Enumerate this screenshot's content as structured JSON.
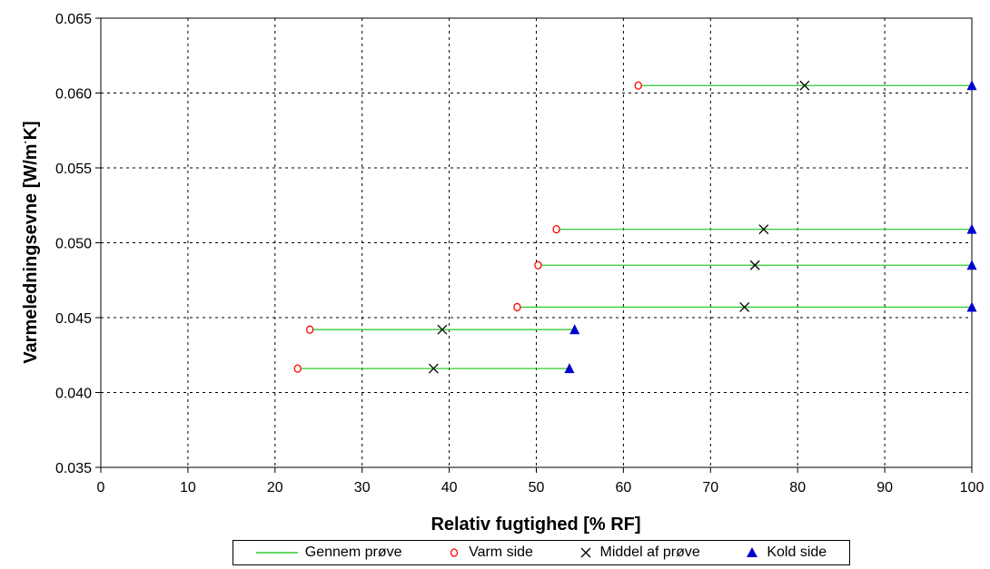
{
  "chart_data": {
    "type": "scatter",
    "title": "",
    "xlabel": "Relativ fugtighed [% RF]",
    "ylabel_main": "Varmeledningsevne [W/m",
    "ylabel_sup": "·",
    "ylabel_end": "K]",
    "xlim": [
      0,
      100
    ],
    "ylim": [
      0.035,
      0.065
    ],
    "xticks": [
      0,
      10,
      20,
      30,
      40,
      50,
      60,
      70,
      80,
      90,
      100
    ],
    "xtick_labels": [
      "0",
      "10",
      "20",
      "30",
      "40",
      "50",
      "60",
      "70",
      "80",
      "90",
      "100"
    ],
    "yticks": [
      0.035,
      0.04,
      0.045,
      0.05,
      0.055,
      0.06,
      0.065
    ],
    "ytick_labels": [
      "0.035",
      "0.040",
      "0.045",
      "0.050",
      "0.055",
      "0.060",
      "0.065"
    ],
    "grid": true,
    "legend_position": "bottom",
    "colors": {
      "line": "#33cc33",
      "warm": "#ff0000",
      "mean": "#000000",
      "cold": "#0000cc"
    },
    "series": [
      {
        "name": "Gennem prøve",
        "kind": "segments"
      },
      {
        "name": "Varm side",
        "kind": "open-circle"
      },
      {
        "name": "Middel af prøve",
        "kind": "x"
      },
      {
        "name": "Kold side",
        "kind": "triangle"
      }
    ],
    "samples": [
      {
        "warm_x": 61.7,
        "mean_x": 80.8,
        "cold_x": 100.0,
        "y": 0.0605
      },
      {
        "warm_x": 52.3,
        "mean_x": 76.1,
        "cold_x": 100.0,
        "y": 0.0509
      },
      {
        "warm_x": 50.2,
        "mean_x": 75.1,
        "cold_x": 100.0,
        "y": 0.0485
      },
      {
        "warm_x": 47.8,
        "mean_x": 73.9,
        "cold_x": 100.0,
        "y": 0.0457
      },
      {
        "warm_x": 24.0,
        "mean_x": 39.2,
        "cold_x": 54.4,
        "y": 0.0442
      },
      {
        "warm_x": 22.6,
        "mean_x": 38.2,
        "cold_x": 53.8,
        "y": 0.0416
      }
    ]
  }
}
